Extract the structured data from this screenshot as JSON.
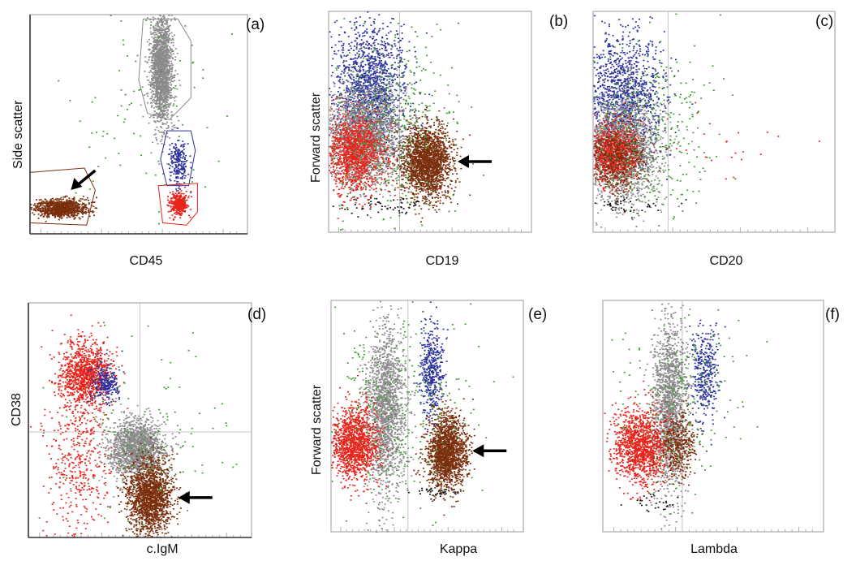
{
  "colors": {
    "b_lymphoid": "#7a2e0c",
    "lymphocytes": "#e8231c",
    "monocytes": "#2a2f9e",
    "granulocytes": "#8a8a8a",
    "debris": "#111111",
    "other": "#3c9a2c"
  },
  "chart_data": [
    {
      "id": "a",
      "type": "scatter",
      "panel_label": "(a)",
      "xlabel": "CD45",
      "ylabel": "Side scatter",
      "xlim": [
        0,
        1
      ],
      "ylim": [
        0,
        1
      ],
      "grid": false,
      "gates": [
        {
          "color": "b_lymphoid",
          "points": [
            [
              0.0,
              0.28
            ],
            [
              0.25,
              0.3
            ],
            [
              0.3,
              0.2
            ],
            [
              0.26,
              0.04
            ],
            [
              0.0,
              0.05
            ]
          ]
        },
        {
          "color": "granulocytes",
          "points": [
            [
              0.52,
              0.98
            ],
            [
              0.68,
              0.98
            ],
            [
              0.74,
              0.88
            ],
            [
              0.74,
              0.62
            ],
            [
              0.64,
              0.52
            ],
            [
              0.54,
              0.55
            ],
            [
              0.5,
              0.7
            ]
          ]
        },
        {
          "color": "monocytes",
          "points": [
            [
              0.63,
              0.47
            ],
            [
              0.74,
              0.47
            ],
            [
              0.76,
              0.38
            ],
            [
              0.73,
              0.22
            ],
            [
              0.63,
              0.22
            ],
            [
              0.6,
              0.34
            ]
          ]
        },
        {
          "color": "lymphocytes",
          "points": [
            [
              0.59,
              0.22
            ],
            [
              0.77,
              0.23
            ],
            [
              0.77,
              0.1
            ],
            [
              0.72,
              0.04
            ],
            [
              0.61,
              0.05
            ]
          ]
        }
      ],
      "populations": [
        {
          "color": "b_lymphoid",
          "cx": 0.14,
          "cy": 0.12,
          "sx": 0.06,
          "sy": 0.02,
          "n": 900
        },
        {
          "color": "granulocytes",
          "cx": 0.6,
          "cy": 0.75,
          "sx": 0.025,
          "sy": 0.13,
          "n": 1800
        },
        {
          "color": "monocytes",
          "cx": 0.68,
          "cy": 0.33,
          "sx": 0.02,
          "sy": 0.05,
          "n": 220
        },
        {
          "color": "lymphocytes",
          "cx": 0.68,
          "cy": 0.14,
          "sx": 0.02,
          "sy": 0.025,
          "n": 420
        },
        {
          "color": "other",
          "cx": 0.55,
          "cy": 0.5,
          "sx": 0.2,
          "sy": 0.3,
          "n": 90
        }
      ],
      "annotations": [
        {
          "type": "arrow",
          "points_to": "b_lymphoid",
          "direction": "down-left"
        }
      ]
    },
    {
      "id": "b",
      "type": "scatter",
      "panel_label": "(b)",
      "xlabel": "CD19",
      "ylabel": "Forward scatter",
      "xlim": [
        0,
        1
      ],
      "ylim": [
        0,
        1
      ],
      "grid": false,
      "quadrant_x": 0.35,
      "populations": [
        {
          "color": "monocytes",
          "cx": 0.2,
          "cy": 0.65,
          "sx": 0.09,
          "sy": 0.14,
          "n": 1400
        },
        {
          "color": "granulocytes",
          "cx": 0.18,
          "cy": 0.43,
          "sx": 0.1,
          "sy": 0.11,
          "n": 2000
        },
        {
          "color": "lymphocytes",
          "cx": 0.13,
          "cy": 0.36,
          "sx": 0.07,
          "sy": 0.09,
          "n": 1300
        },
        {
          "color": "b_lymphoid",
          "cx": 0.48,
          "cy": 0.32,
          "sx": 0.06,
          "sy": 0.08,
          "n": 2000
        },
        {
          "color": "other",
          "cx": 0.28,
          "cy": 0.5,
          "sx": 0.17,
          "sy": 0.22,
          "n": 400
        },
        {
          "color": "debris",
          "cx": 0.25,
          "cy": 0.12,
          "sx": 0.14,
          "sy": 0.02,
          "n": 60
        }
      ],
      "annotations": [
        {
          "type": "arrow",
          "points_to": "b_lymphoid",
          "direction": "left"
        }
      ]
    },
    {
      "id": "c",
      "type": "scatter",
      "panel_label": "(c)",
      "xlabel": "CD20",
      "ylabel": "",
      "xlim": [
        0,
        1
      ],
      "ylim": [
        0,
        1
      ],
      "grid": false,
      "quadrant_x": 0.31,
      "populations": [
        {
          "color": "monocytes",
          "cx": 0.12,
          "cy": 0.62,
          "sx": 0.08,
          "sy": 0.15,
          "n": 1300
        },
        {
          "color": "granulocytes",
          "cx": 0.12,
          "cy": 0.38,
          "sx": 0.08,
          "sy": 0.12,
          "n": 1800
        },
        {
          "color": "lymphocytes",
          "cx": 0.08,
          "cy": 0.36,
          "sx": 0.05,
          "sy": 0.07,
          "n": 900
        },
        {
          "color": "b_lymphoid",
          "cx": 0.1,
          "cy": 0.33,
          "sx": 0.06,
          "sy": 0.07,
          "n": 500
        },
        {
          "color": "other",
          "cx": 0.22,
          "cy": 0.45,
          "sx": 0.15,
          "sy": 0.22,
          "n": 350
        },
        {
          "color": "lymphocytes",
          "cx": 0.55,
          "cy": 0.4,
          "sx": 0.2,
          "sy": 0.1,
          "n": 25
        },
        {
          "color": "debris",
          "cx": 0.12,
          "cy": 0.12,
          "sx": 0.08,
          "sy": 0.02,
          "n": 50
        }
      ]
    },
    {
      "id": "d",
      "type": "scatter",
      "panel_label": "(d)",
      "xlabel": "c.IgM",
      "ylabel": "CD38",
      "xlim": [
        0,
        1
      ],
      "ylim": [
        0,
        1
      ],
      "grid": false,
      "quadrant_x": 0.5,
      "quadrant_y": 0.45,
      "populations": [
        {
          "color": "lymphocytes",
          "cx": 0.25,
          "cy": 0.7,
          "sx": 0.06,
          "sy": 0.07,
          "n": 1100
        },
        {
          "color": "monocytes",
          "cx": 0.34,
          "cy": 0.66,
          "sx": 0.03,
          "sy": 0.04,
          "n": 250
        },
        {
          "color": "lymphocytes",
          "cx": 0.22,
          "cy": 0.35,
          "sx": 0.07,
          "sy": 0.18,
          "n": 450
        },
        {
          "color": "granulocytes",
          "cx": 0.48,
          "cy": 0.38,
          "sx": 0.06,
          "sy": 0.06,
          "n": 1600
        },
        {
          "color": "b_lymphoid",
          "cx": 0.54,
          "cy": 0.17,
          "sx": 0.05,
          "sy": 0.08,
          "n": 1700
        },
        {
          "color": "other",
          "cx": 0.5,
          "cy": 0.45,
          "sx": 0.2,
          "sy": 0.2,
          "n": 150
        }
      ],
      "annotations": [
        {
          "type": "arrow",
          "points_to": "b_lymphoid",
          "direction": "left"
        }
      ]
    },
    {
      "id": "e",
      "type": "scatter",
      "panel_label": "(e)",
      "xlabel": "Kappa",
      "ylabel": "Forward scatter",
      "xlim": [
        0,
        1
      ],
      "ylim": [
        0,
        1
      ],
      "grid": false,
      "quadrant_x": 0.4,
      "populations": [
        {
          "color": "granulocytes",
          "cx": 0.28,
          "cy": 0.52,
          "sx": 0.05,
          "sy": 0.18,
          "n": 1700
        },
        {
          "color": "monocytes",
          "cx": 0.52,
          "cy": 0.7,
          "sx": 0.03,
          "sy": 0.1,
          "n": 450
        },
        {
          "color": "lymphocytes",
          "cx": 0.12,
          "cy": 0.38,
          "sx": 0.06,
          "sy": 0.08,
          "n": 1300
        },
        {
          "color": "b_lymphoid",
          "cx": 0.6,
          "cy": 0.35,
          "sx": 0.05,
          "sy": 0.08,
          "n": 1700
        },
        {
          "color": "other",
          "cx": 0.35,
          "cy": 0.55,
          "sx": 0.2,
          "sy": 0.2,
          "n": 300
        },
        {
          "color": "debris",
          "cx": 0.55,
          "cy": 0.17,
          "sx": 0.05,
          "sy": 0.01,
          "n": 40
        }
      ],
      "annotations": [
        {
          "type": "arrow",
          "points_to": "b_lymphoid",
          "direction": "left"
        }
      ]
    },
    {
      "id": "f",
      "type": "scatter",
      "panel_label": "(f)",
      "xlabel": "Lambda",
      "ylabel": "",
      "xlim": [
        0,
        1
      ],
      "ylim": [
        0,
        1
      ],
      "grid": false,
      "quadrant_x": 0.36,
      "populations": [
        {
          "color": "granulocytes",
          "cx": 0.3,
          "cy": 0.55,
          "sx": 0.04,
          "sy": 0.18,
          "n": 1600
        },
        {
          "color": "monocytes",
          "cx": 0.46,
          "cy": 0.68,
          "sx": 0.03,
          "sy": 0.1,
          "n": 350
        },
        {
          "color": "lymphocytes",
          "cx": 0.17,
          "cy": 0.37,
          "sx": 0.06,
          "sy": 0.08,
          "n": 1300
        },
        {
          "color": "b_lymphoid",
          "cx": 0.34,
          "cy": 0.38,
          "sx": 0.04,
          "sy": 0.07,
          "n": 400
        },
        {
          "color": "other",
          "cx": 0.35,
          "cy": 0.55,
          "sx": 0.15,
          "sy": 0.2,
          "n": 200
        },
        {
          "color": "debris",
          "cx": 0.22,
          "cy": 0.13,
          "sx": 0.05,
          "sy": 0.02,
          "n": 30
        }
      ]
    }
  ]
}
